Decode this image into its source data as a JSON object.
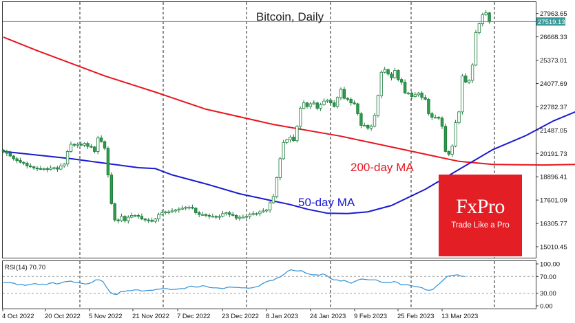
{
  "chart_data": [
    {
      "type": "candlestick",
      "title": "Bitcoin, Daily",
      "ylim": [
        14400,
        28600
      ],
      "y_ticks": [
        "27963.65",
        "26668.33",
        "25373.01",
        "24077.69",
        "22782.37",
        "21487.05",
        "20191.73",
        "18896.41",
        "17601.09",
        "16305.77",
        "15010.45"
      ],
      "current_price_label": "27519.13",
      "current_price": 27519.13,
      "x_ticks": [
        "4 Oct 2022",
        "20 Oct 2022",
        "5 Nov 2022",
        "21 Nov 2022",
        "7 Dec 2022",
        "23 Dec 2022",
        "8 Jan 2023",
        "24 Jan 2023",
        "9 Feb 2023",
        "25 Feb 2023",
        "13 Mar 2023"
      ],
      "closes": [
        20300,
        20200,
        20050,
        19900,
        19800,
        19700,
        19650,
        19500,
        19450,
        19380,
        19350,
        19330,
        19350,
        19300,
        19380,
        19400,
        19320,
        19500,
        19600,
        20300,
        20700,
        20650,
        20700,
        20650,
        20750,
        20580,
        20550,
        20300,
        21050,
        20850,
        20480,
        19000,
        17400,
        16500,
        16450,
        16700,
        16450,
        16650,
        16750,
        16750,
        16700,
        16550,
        16500,
        16480,
        16420,
        16550,
        16800,
        16900,
        16950,
        16950,
        17000,
        17050,
        17100,
        17150,
        17200,
        17200,
        17150,
        16900,
        16800,
        16800,
        16750,
        16700,
        16700,
        16650,
        16700,
        16850,
        16900,
        16800,
        16750,
        16600,
        16650,
        16650,
        16700,
        16800,
        16850,
        16850,
        16950,
        17000,
        17050,
        17450,
        17800,
        18850,
        19900,
        20800,
        20950,
        21100,
        20900,
        21700,
        22700,
        23000,
        22800,
        22950,
        23000,
        22700,
        22900,
        23100,
        23150,
        23000,
        22800,
        23300,
        23750,
        23250,
        23200,
        23000,
        22950,
        22400,
        21750,
        21750,
        21600,
        21700,
        22300,
        23400,
        24700,
        24850,
        24600,
        24400,
        24800,
        24300,
        24150,
        23550,
        23550,
        23350,
        23450,
        23550,
        23300,
        23200,
        22400,
        22200,
        22200,
        22150,
        21700,
        20300,
        20150,
        20600,
        21900,
        22500,
        24500,
        24150,
        24250,
        25100,
        26900,
        27400,
        27900,
        28000,
        27500
      ],
      "ma50_label": "50-day MA",
      "ma200_label": "200-day MA",
      "ma50_color": "#1919d2",
      "ma200_color": "#e8141e",
      "ma50": [
        [
          0,
          20300
        ],
        [
          20,
          19900
        ],
        [
          40,
          19400
        ],
        [
          45,
          19350
        ],
        [
          50,
          19000
        ],
        [
          60,
          18500
        ],
        [
          70,
          17950
        ],
        [
          80,
          17550
        ],
        [
          85,
          17350
        ],
        [
          90,
          17100
        ],
        [
          96,
          16870
        ],
        [
          102,
          16850
        ],
        [
          108,
          16950
        ],
        [
          115,
          17300
        ],
        [
          125,
          18200
        ],
        [
          135,
          19300
        ],
        [
          145,
          20400
        ],
        [
          155,
          21200
        ],
        [
          163,
          22000
        ],
        [
          172,
          22700
        ],
        [
          182,
          23200
        ],
        [
          192,
          23150
        ],
        [
          200,
          23350
        ],
        [
          206,
          23650
        ]
      ],
      "ma200": [
        [
          0,
          26650
        ],
        [
          10,
          25900
        ],
        [
          30,
          24500
        ],
        [
          45,
          23600
        ],
        [
          60,
          22650
        ],
        [
          80,
          21800
        ],
        [
          100,
          21150
        ],
        [
          115,
          20550
        ],
        [
          125,
          20150
        ],
        [
          135,
          19750
        ],
        [
          145,
          19580
        ],
        [
          160,
          19550
        ],
        [
          175,
          19600
        ],
        [
          185,
          19700
        ],
        [
          195,
          19750
        ],
        [
          200,
          19820
        ],
        [
          206,
          20000
        ]
      ]
    },
    {
      "type": "line",
      "label": "RSI(14) 70.70",
      "ylim": [
        0,
        100
      ],
      "y_ticks": [
        "100.00",
        "70.00",
        "30.00",
        "0.00"
      ],
      "levels": [
        30,
        70
      ],
      "values": [
        55,
        56,
        55,
        54,
        50,
        51,
        49,
        50,
        52,
        53,
        51,
        52,
        50,
        54,
        55,
        52,
        54,
        57,
        58,
        59,
        56,
        55,
        54,
        52,
        53,
        56,
        62,
        62,
        58,
        45,
        33,
        28,
        27,
        34,
        34,
        36,
        36,
        38,
        38,
        35,
        36,
        37,
        37,
        39,
        40,
        41,
        41,
        39,
        39,
        40,
        41,
        41,
        45,
        47,
        45,
        45,
        48,
        47,
        44,
        43,
        43,
        42,
        41,
        44,
        45,
        44,
        44,
        43,
        43,
        42,
        43,
        45,
        47,
        53,
        57,
        60,
        61,
        66,
        69,
        75,
        82,
        86,
        84,
        83,
        84,
        79,
        76,
        74,
        74,
        73,
        76,
        73,
        66,
        62,
        62,
        59,
        61,
        57,
        54,
        58,
        62,
        64,
        63,
        62,
        62,
        62,
        58,
        55,
        56,
        55,
        58,
        56,
        50,
        50,
        50,
        48,
        46,
        45,
        43,
        38,
        37,
        39,
        47,
        54,
        62,
        70,
        72,
        73,
        74,
        71,
        70
      ]
    }
  ]
}
